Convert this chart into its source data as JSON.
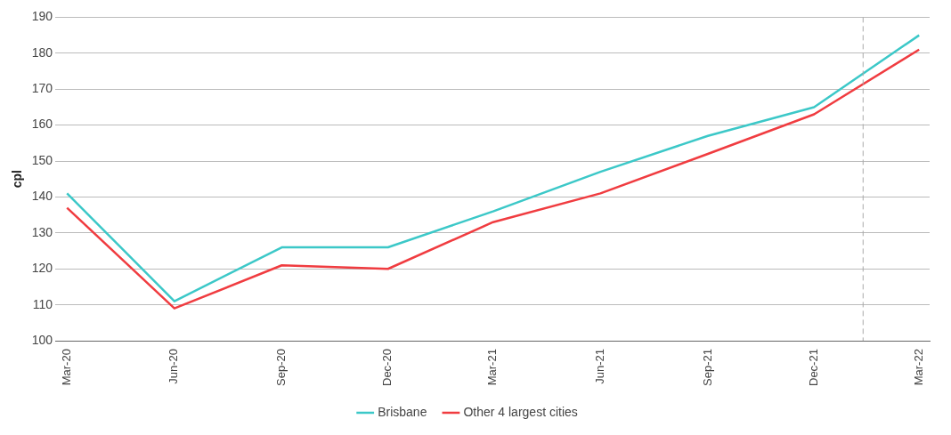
{
  "chart_data": {
    "type": "line",
    "ylabel": "cpl",
    "x": [
      "2020-03",
      "2020-06",
      "2020-09",
      "2020-12",
      "2021-03",
      "2021-06",
      "2021-09",
      "2021-12",
      "2022-03"
    ],
    "series": [
      {
        "name": "Brisbane",
        "color": "#3cc8c8",
        "values": [
          141,
          111,
          126,
          126,
          136,
          147,
          157,
          165,
          185
        ]
      },
      {
        "name": "Other 4 largest cities",
        "color": "#f03c40",
        "values": [
          137,
          109,
          121,
          120,
          133,
          141,
          152,
          163,
          181
        ]
      }
    ],
    "xlim": [
      "2020-02-20",
      "2022-03-10"
    ],
    "xticks": [
      {
        "value": "2020-03",
        "label": "Mar-20"
      },
      {
        "value": "2020-06",
        "label": "Jun-20"
      },
      {
        "value": "2020-09",
        "label": "Sep-20"
      },
      {
        "value": "2020-12",
        "label": "Dec-20"
      },
      {
        "value": "2021-03",
        "label": "Mar-21"
      },
      {
        "value": "2021-06",
        "label": "Jun-21"
      },
      {
        "value": "2021-09",
        "label": "Sep-21"
      },
      {
        "value": "2021-12",
        "label": "Dec-21"
      },
      {
        "value": "2022-03",
        "label": "Mar-22"
      }
    ],
    "ylim": [
      100,
      190
    ],
    "yticks": [
      100,
      110,
      120,
      130,
      140,
      150,
      160,
      170,
      180,
      190
    ],
    "ref_lines": [
      {
        "axis": "x",
        "value": "2022-01-12",
        "color": "#aaaaaa",
        "line_style": "dashed"
      }
    ],
    "grid": "y",
    "legend": "bottom",
    "marker": "none",
    "line_style": "solid"
  }
}
